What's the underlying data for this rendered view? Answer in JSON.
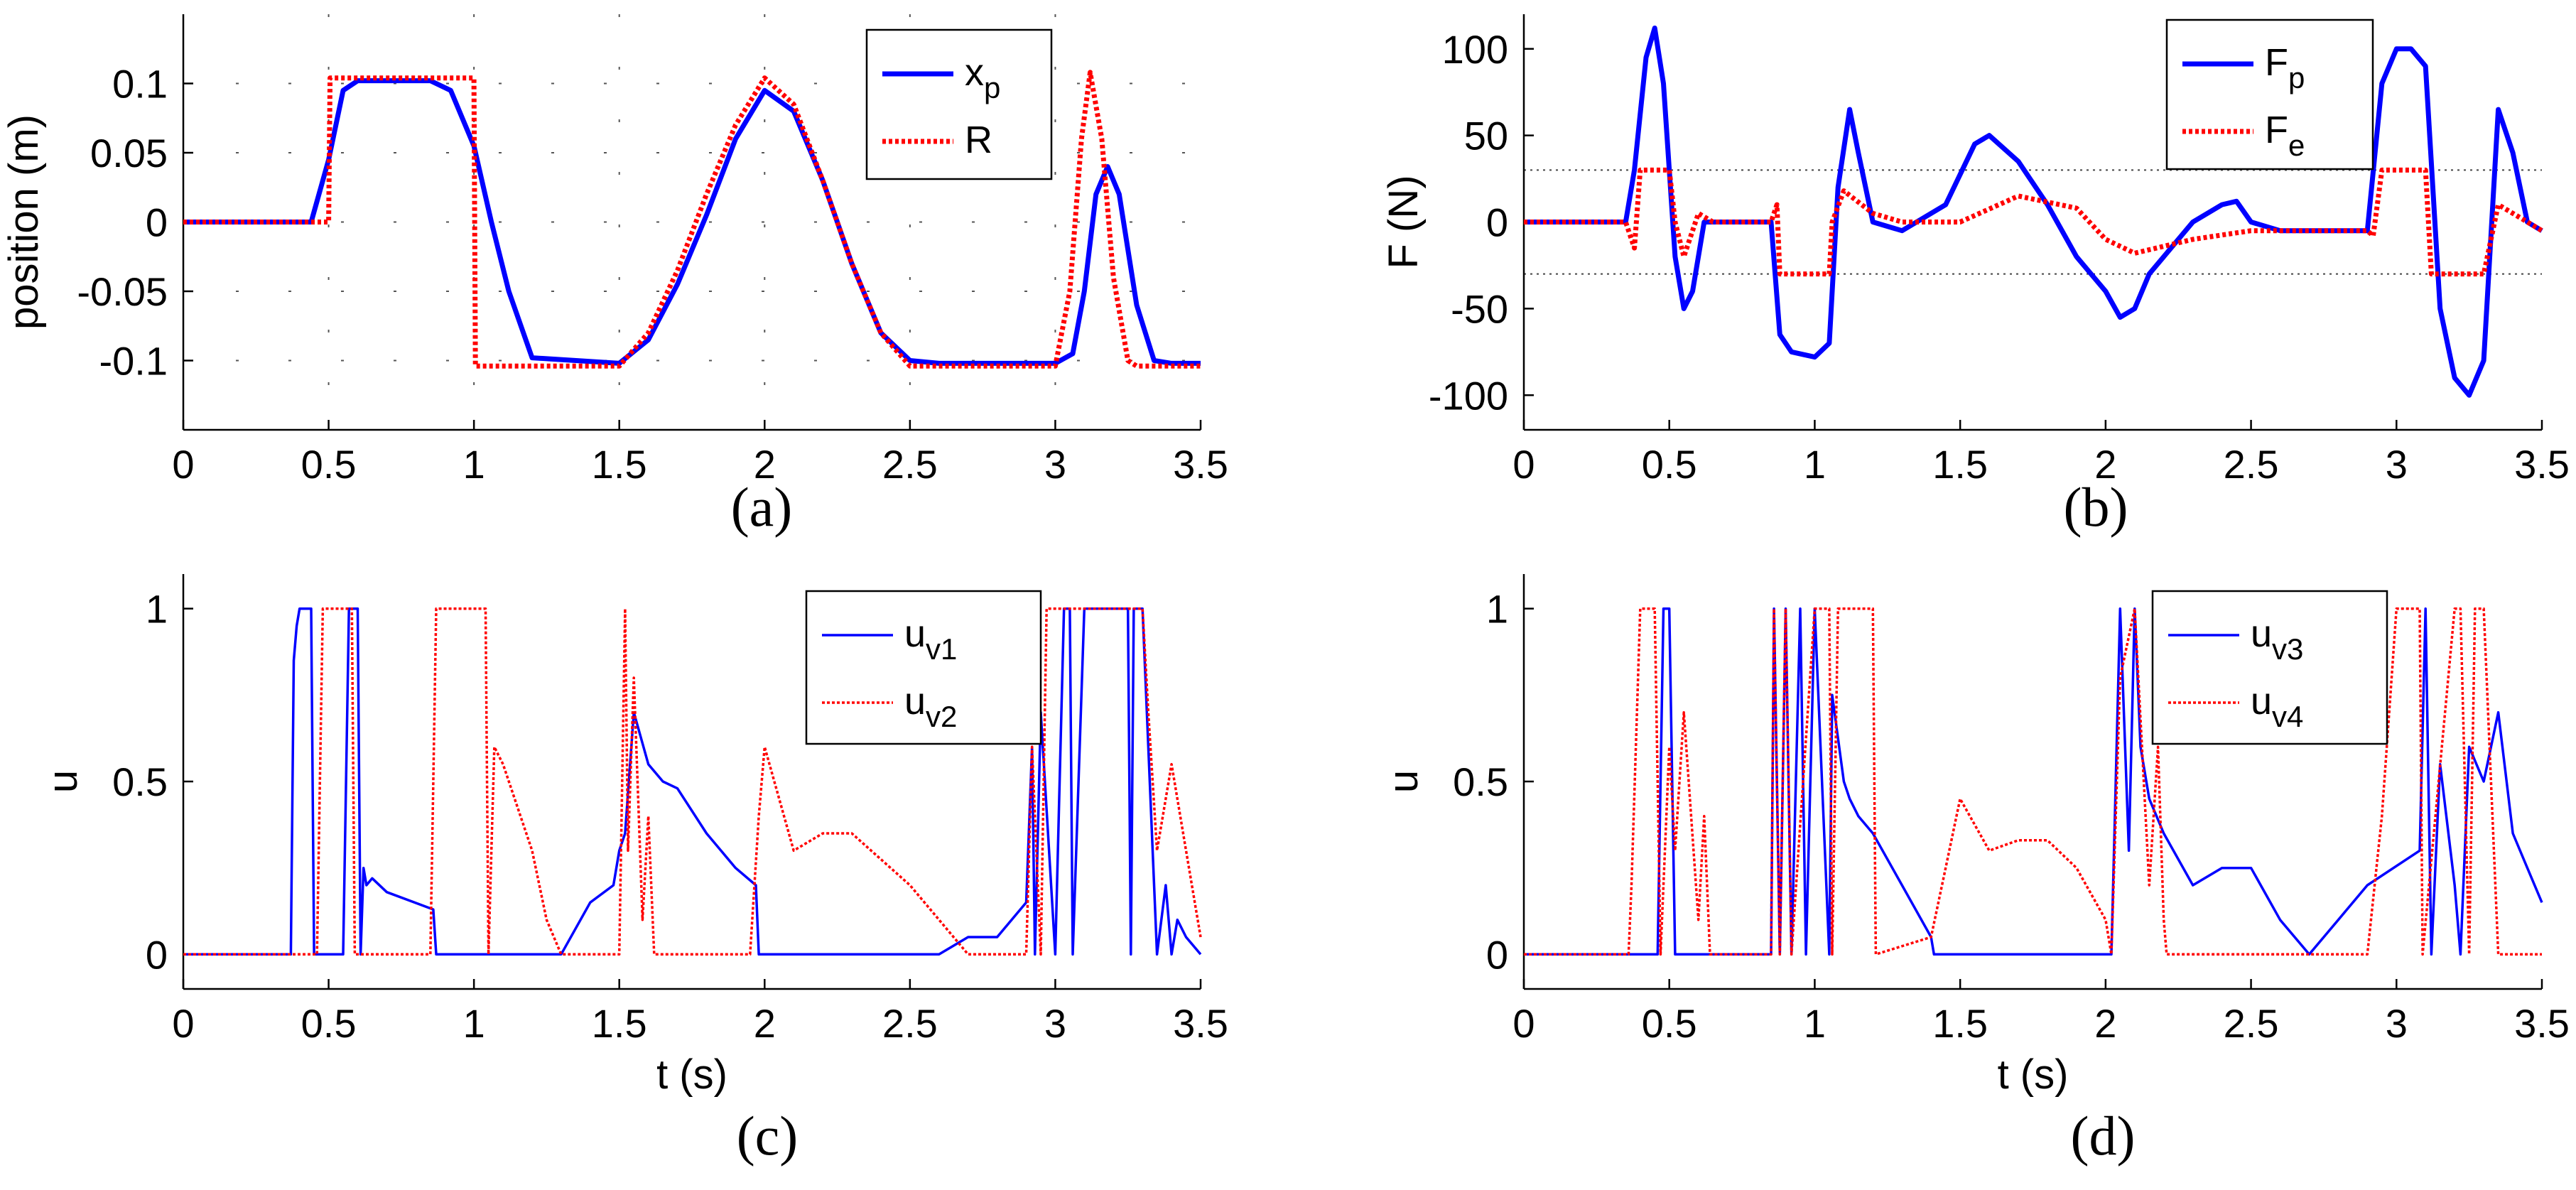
{
  "colors": {
    "blue": "#0000ff",
    "red": "#ff0000",
    "axis": "#000000",
    "grid": "#555555"
  },
  "chart_data": [
    {
      "id": "a",
      "type": "line",
      "caption": "(a)",
      "xlabel": "",
      "ylabel": "position (m)",
      "xlim": [
        0,
        3.5
      ],
      "ylim": [
        -0.15,
        0.15
      ],
      "xticks": [
        0,
        0.5,
        1,
        1.5,
        2,
        2.5,
        3,
        3.5
      ],
      "xticklabels": [
        "0",
        "0.5",
        "1",
        "1.5",
        "2",
        "2.5",
        "3",
        "3.5"
      ],
      "yticks": [
        -0.1,
        -0.05,
        0,
        0.05,
        0.1
      ],
      "yticklabels": [
        "-0.1",
        "-0.05",
        "0",
        "0.05",
        "0.1"
      ],
      "grid": true,
      "legend_position": "top-right",
      "series": [
        {
          "name": "x",
          "sub": "p",
          "color": "#0000ff",
          "style": "solid",
          "width": "thick",
          "x": [
            0,
            0.44,
            0.5,
            0.55,
            0.6,
            0.85,
            0.92,
            1.0,
            1.06,
            1.12,
            1.2,
            1.5,
            1.6,
            1.7,
            1.8,
            1.9,
            2.0,
            2.1,
            2.2,
            2.3,
            2.4,
            2.5,
            2.6,
            3.0,
            3.06,
            3.1,
            3.14,
            3.18,
            3.22,
            3.28,
            3.34,
            3.4,
            3.5
          ],
          "y": [
            0,
            0,
            0.045,
            0.095,
            0.102,
            0.102,
            0.095,
            0.055,
            0.0,
            -0.05,
            -0.098,
            -0.102,
            -0.085,
            -0.045,
            0.005,
            0.06,
            0.095,
            0.08,
            0.03,
            -0.03,
            -0.08,
            -0.1,
            -0.102,
            -0.102,
            -0.095,
            -0.05,
            0.02,
            0.04,
            0.02,
            -0.06,
            -0.1,
            -0.102,
            -0.102
          ]
        },
        {
          "name": "R",
          "color": "#ff0000",
          "style": "dotted",
          "width": "thick",
          "x": [
            0,
            0.5,
            0.505,
            1.0,
            1.005,
            1.5,
            1.6,
            1.7,
            1.8,
            1.9,
            2.0,
            2.1,
            2.2,
            2.3,
            2.4,
            2.5,
            3.0,
            3.05,
            3.09,
            3.12,
            3.16,
            3.2,
            3.25,
            3.28,
            3.5
          ],
          "y": [
            0,
            0,
            0.104,
            0.104,
            -0.104,
            -0.104,
            -0.08,
            -0.035,
            0.02,
            0.07,
            0.104,
            0.085,
            0.03,
            -0.03,
            -0.08,
            -0.104,
            -0.104,
            -0.05,
            0.06,
            0.108,
            0.06,
            -0.04,
            -0.1,
            -0.104,
            -0.104
          ]
        }
      ],
      "legend": [
        {
          "label": "x",
          "sub": "p"
        },
        {
          "label": "R",
          "sub": ""
        }
      ]
    },
    {
      "id": "b",
      "type": "line",
      "caption": "(b)",
      "xlabel": "",
      "ylabel": "F (N)",
      "xlim": [
        0,
        3.5
      ],
      "ylim": [
        -120,
        120
      ],
      "xticks": [
        0,
        0.5,
        1,
        1.5,
        2,
        2.5,
        3,
        3.5
      ],
      "xticklabels": [
        "0",
        "0.5",
        "1",
        "1.5",
        "2",
        "2.5",
        "3",
        "3.5"
      ],
      "yticks": [
        -100,
        -50,
        0,
        50,
        100
      ],
      "yticklabels": [
        "-100",
        "-50",
        "0",
        "50",
        "100"
      ],
      "grid": false,
      "hlines": [
        30,
        -30
      ],
      "legend_position": "top-right",
      "series": [
        {
          "name": "F",
          "sub": "p",
          "color": "#0000ff",
          "style": "solid",
          "width": "thick",
          "x": [
            0,
            0.35,
            0.38,
            0.42,
            0.45,
            0.48,
            0.52,
            0.55,
            0.58,
            0.62,
            0.85,
            0.88,
            0.92,
            1.0,
            1.05,
            1.08,
            1.12,
            1.15,
            1.2,
            1.3,
            1.45,
            1.55,
            1.6,
            1.7,
            1.8,
            1.9,
            2.0,
            2.05,
            2.1,
            2.15,
            2.3,
            2.4,
            2.45,
            2.5,
            2.6,
            2.9,
            2.95,
            3.0,
            3.05,
            3.1,
            3.15,
            3.2,
            3.25,
            3.3,
            3.35,
            3.4,
            3.45,
            3.5
          ],
          "y": [
            0,
            0,
            30,
            95,
            112,
            80,
            -20,
            -50,
            -40,
            0,
            0,
            -65,
            -75,
            -78,
            -70,
            20,
            65,
            40,
            0,
            -5,
            10,
            45,
            50,
            35,
            10,
            -20,
            -40,
            -55,
            -50,
            -30,
            0,
            10,
            12,
            0,
            -5,
            -5,
            80,
            100,
            100,
            90,
            -50,
            -90,
            -100,
            -80,
            65,
            40,
            0,
            -5
          ]
        },
        {
          "name": "F",
          "sub": "e",
          "color": "#ff0000",
          "style": "dotted",
          "width": "thick",
          "x": [
            0,
            0.35,
            0.38,
            0.4,
            0.5,
            0.52,
            0.55,
            0.6,
            0.65,
            0.85,
            0.87,
            0.88,
            1.05,
            1.06,
            1.1,
            1.2,
            1.3,
            1.5,
            1.7,
            1.9,
            2.0,
            2.1,
            2.3,
            2.5,
            2.9,
            2.92,
            2.95,
            3.1,
            3.12,
            3.3,
            3.35,
            3.5
          ],
          "y": [
            0,
            0,
            -15,
            30,
            30,
            0,
            -20,
            5,
            0,
            0,
            10,
            -30,
            -30,
            0,
            18,
            5,
            0,
            0,
            15,
            8,
            -10,
            -18,
            -10,
            -5,
            -5,
            -8,
            30,
            30,
            -30,
            -30,
            10,
            -5
          ]
        }
      ],
      "legend": [
        {
          "label": "F",
          "sub": "p"
        },
        {
          "label": "F",
          "sub": "e"
        }
      ]
    },
    {
      "id": "c",
      "type": "line",
      "caption": "(c)",
      "xlabel": "t (s)",
      "ylabel": "u",
      "xlim": [
        0,
        3.5
      ],
      "ylim": [
        -0.1,
        1.1
      ],
      "xticks": [
        0,
        0.5,
        1,
        1.5,
        2,
        2.5,
        3,
        3.5
      ],
      "xticklabels": [
        "0",
        "0.5",
        "1",
        "1.5",
        "2",
        "2.5",
        "3",
        "3.5"
      ],
      "yticks": [
        0,
        0.5,
        1
      ],
      "yticklabels": [
        "0",
        "0.5",
        "1"
      ],
      "grid": false,
      "legend_position": "top-right",
      "series": [
        {
          "name": "u",
          "sub": "v1",
          "color": "#0000ff",
          "style": "solid",
          "width": "thin",
          "x": [
            0,
            0.37,
            0.38,
            0.39,
            0.4,
            0.42,
            0.44,
            0.45,
            0.46,
            0.47,
            0.55,
            0.57,
            0.6,
            0.61,
            0.62,
            0.63,
            0.65,
            0.7,
            0.86,
            0.87,
            1.3,
            1.4,
            1.48,
            1.5,
            1.52,
            1.55,
            1.6,
            1.65,
            1.7,
            1.8,
            1.9,
            1.97,
            1.98,
            2.6,
            2.7,
            2.8,
            2.9,
            2.92,
            2.93,
            2.95,
            3.0,
            3.03,
            3.05,
            3.06,
            3.1,
            3.25,
            3.26,
            3.27,
            3.3,
            3.35,
            3.38,
            3.4,
            3.42,
            3.45,
            3.5
          ],
          "y": [
            0,
            0,
            0.85,
            0.95,
            1.0,
            1.0,
            1.0,
            0.0,
            0.0,
            0.0,
            0.0,
            1.0,
            1.0,
            0.0,
            0.25,
            0.2,
            0.22,
            0.18,
            0.13,
            0.0,
            0.0,
            0.15,
            0.2,
            0.3,
            0.35,
            0.7,
            0.55,
            0.5,
            0.48,
            0.35,
            0.25,
            0.2,
            0.0,
            0.0,
            0.05,
            0.05,
            0.15,
            0.6,
            0.0,
            0.7,
            0.0,
            1.0,
            1.0,
            0.0,
            1.0,
            1.0,
            0.0,
            1.0,
            1.0,
            0.0,
            0.2,
            0.0,
            0.1,
            0.05,
            0.0
          ]
        },
        {
          "name": "u",
          "sub": "v2",
          "color": "#ff0000",
          "style": "dotted",
          "width": "thin",
          "x": [
            0,
            0.46,
            0.47,
            0.48,
            0.58,
            0.59,
            0.85,
            0.86,
            0.87,
            1.04,
            1.05,
            1.07,
            1.1,
            1.2,
            1.25,
            1.3,
            1.5,
            1.52,
            1.53,
            1.55,
            1.58,
            1.6,
            1.62,
            1.95,
            1.98,
            2.0,
            2.1,
            2.2,
            2.3,
            2.5,
            2.7,
            2.71,
            2.72,
            2.9,
            2.92,
            2.95,
            2.97,
            3.3,
            3.32,
            3.35,
            3.4,
            3.45,
            3.5
          ],
          "y": [
            0,
            0,
            0.5,
            1.0,
            1.0,
            0.0,
            0.0,
            0.5,
            1.0,
            1.0,
            0.0,
            0.6,
            0.55,
            0.3,
            0.1,
            0.0,
            0.0,
            1.0,
            0.3,
            0.8,
            0.1,
            0.4,
            0.0,
            0.0,
            0.4,
            0.6,
            0.3,
            0.35,
            0.35,
            0.2,
            0.0,
            0.0,
            0.0,
            0.0,
            0.6,
            0.0,
            1.0,
            1.0,
            0.7,
            0.3,
            0.55,
            0.3,
            0.05
          ]
        }
      ],
      "legend": [
        {
          "label": "u",
          "sub": "v1"
        },
        {
          "label": "u",
          "sub": "v2"
        }
      ]
    },
    {
      "id": "d",
      "type": "line",
      "caption": "(d)",
      "xlabel": "t (s)",
      "ylabel": "u",
      "xlim": [
        0,
        3.5
      ],
      "ylim": [
        -0.1,
        1.1
      ],
      "xticks": [
        0,
        0.5,
        1,
        1.5,
        2,
        2.5,
        3,
        3.5
      ],
      "xticklabels": [
        "0",
        "0.5",
        "1",
        "1.5",
        "2",
        "2.5",
        "3",
        "3.5"
      ],
      "yticks": [
        0,
        0.5,
        1
      ],
      "yticklabels": [
        "0",
        "0.5",
        "1"
      ],
      "grid": false,
      "legend_position": "top-right",
      "series": [
        {
          "name": "u",
          "sub": "v3",
          "color": "#0000ff",
          "style": "solid",
          "width": "thin",
          "x": [
            0,
            0.46,
            0.48,
            0.5,
            0.52,
            0.53,
            0.85,
            0.86,
            0.88,
            0.9,
            0.92,
            0.95,
            0.97,
            1.0,
            1.05,
            1.06,
            1.1,
            1.12,
            1.15,
            1.2,
            1.3,
            1.4,
            1.41,
            2.02,
            2.05,
            2.08,
            2.1,
            2.12,
            2.15,
            2.2,
            2.3,
            2.4,
            2.5,
            2.6,
            2.7,
            2.8,
            2.9,
            3.08,
            3.1,
            3.12,
            3.15,
            3.2,
            3.22,
            3.25,
            3.3,
            3.35,
            3.4,
            3.45,
            3.5
          ],
          "y": [
            0,
            0,
            1.0,
            1.0,
            0.0,
            0.0,
            0.0,
            1.0,
            0.0,
            1.0,
            0.0,
            1.0,
            0.0,
            1.0,
            0.0,
            0.75,
            0.5,
            0.45,
            0.4,
            0.35,
            0.2,
            0.05,
            0.0,
            0.0,
            1.0,
            0.3,
            1.0,
            0.6,
            0.45,
            0.35,
            0.2,
            0.25,
            0.25,
            0.1,
            0.0,
            0.1,
            0.2,
            0.3,
            1.0,
            0.0,
            0.55,
            0.2,
            0.0,
            0.6,
            0.5,
            0.7,
            0.35,
            0.25,
            0.15
          ]
        },
        {
          "name": "u",
          "sub": "v4",
          "color": "#ff0000",
          "style": "dotted",
          "width": "thin",
          "x": [
            0,
            0.36,
            0.37,
            0.4,
            0.45,
            0.47,
            0.5,
            0.52,
            0.55,
            0.6,
            0.62,
            0.64,
            0.85,
            0.86,
            0.88,
            0.9,
            0.92,
            1.0,
            1.05,
            1.06,
            1.08,
            1.2,
            1.21,
            1.4,
            1.45,
            1.5,
            1.6,
            1.7,
            1.8,
            1.9,
            2.0,
            2.02,
            2.05,
            2.1,
            2.15,
            2.18,
            2.2,
            2.21,
            2.9,
            2.95,
            3.0,
            3.05,
            3.08,
            3.09,
            3.2,
            3.22,
            3.25,
            3.27,
            3.3,
            3.35,
            3.36,
            3.5
          ],
          "y": [
            0,
            0,
            0.2,
            1.0,
            1.0,
            0.0,
            0.6,
            0.3,
            0.7,
            0.1,
            0.4,
            0.0,
            0.0,
            1.0,
            0.0,
            1.0,
            0.0,
            1.0,
            1.0,
            0.0,
            1.0,
            1.0,
            0.0,
            0.05,
            0.25,
            0.45,
            0.3,
            0.33,
            0.33,
            0.25,
            0.1,
            0.0,
            0.8,
            1.0,
            0.2,
            0.6,
            0.1,
            0.0,
            0.0,
            0.4,
            1.0,
            1.0,
            1.0,
            0.0,
            1.0,
            1.0,
            0.0,
            1.0,
            1.0,
            0.0,
            0.0,
            0.0
          ]
        }
      ],
      "legend": [
        {
          "label": "u",
          "sub": "v3"
        },
        {
          "label": "u",
          "sub": "v4"
        }
      ]
    }
  ]
}
